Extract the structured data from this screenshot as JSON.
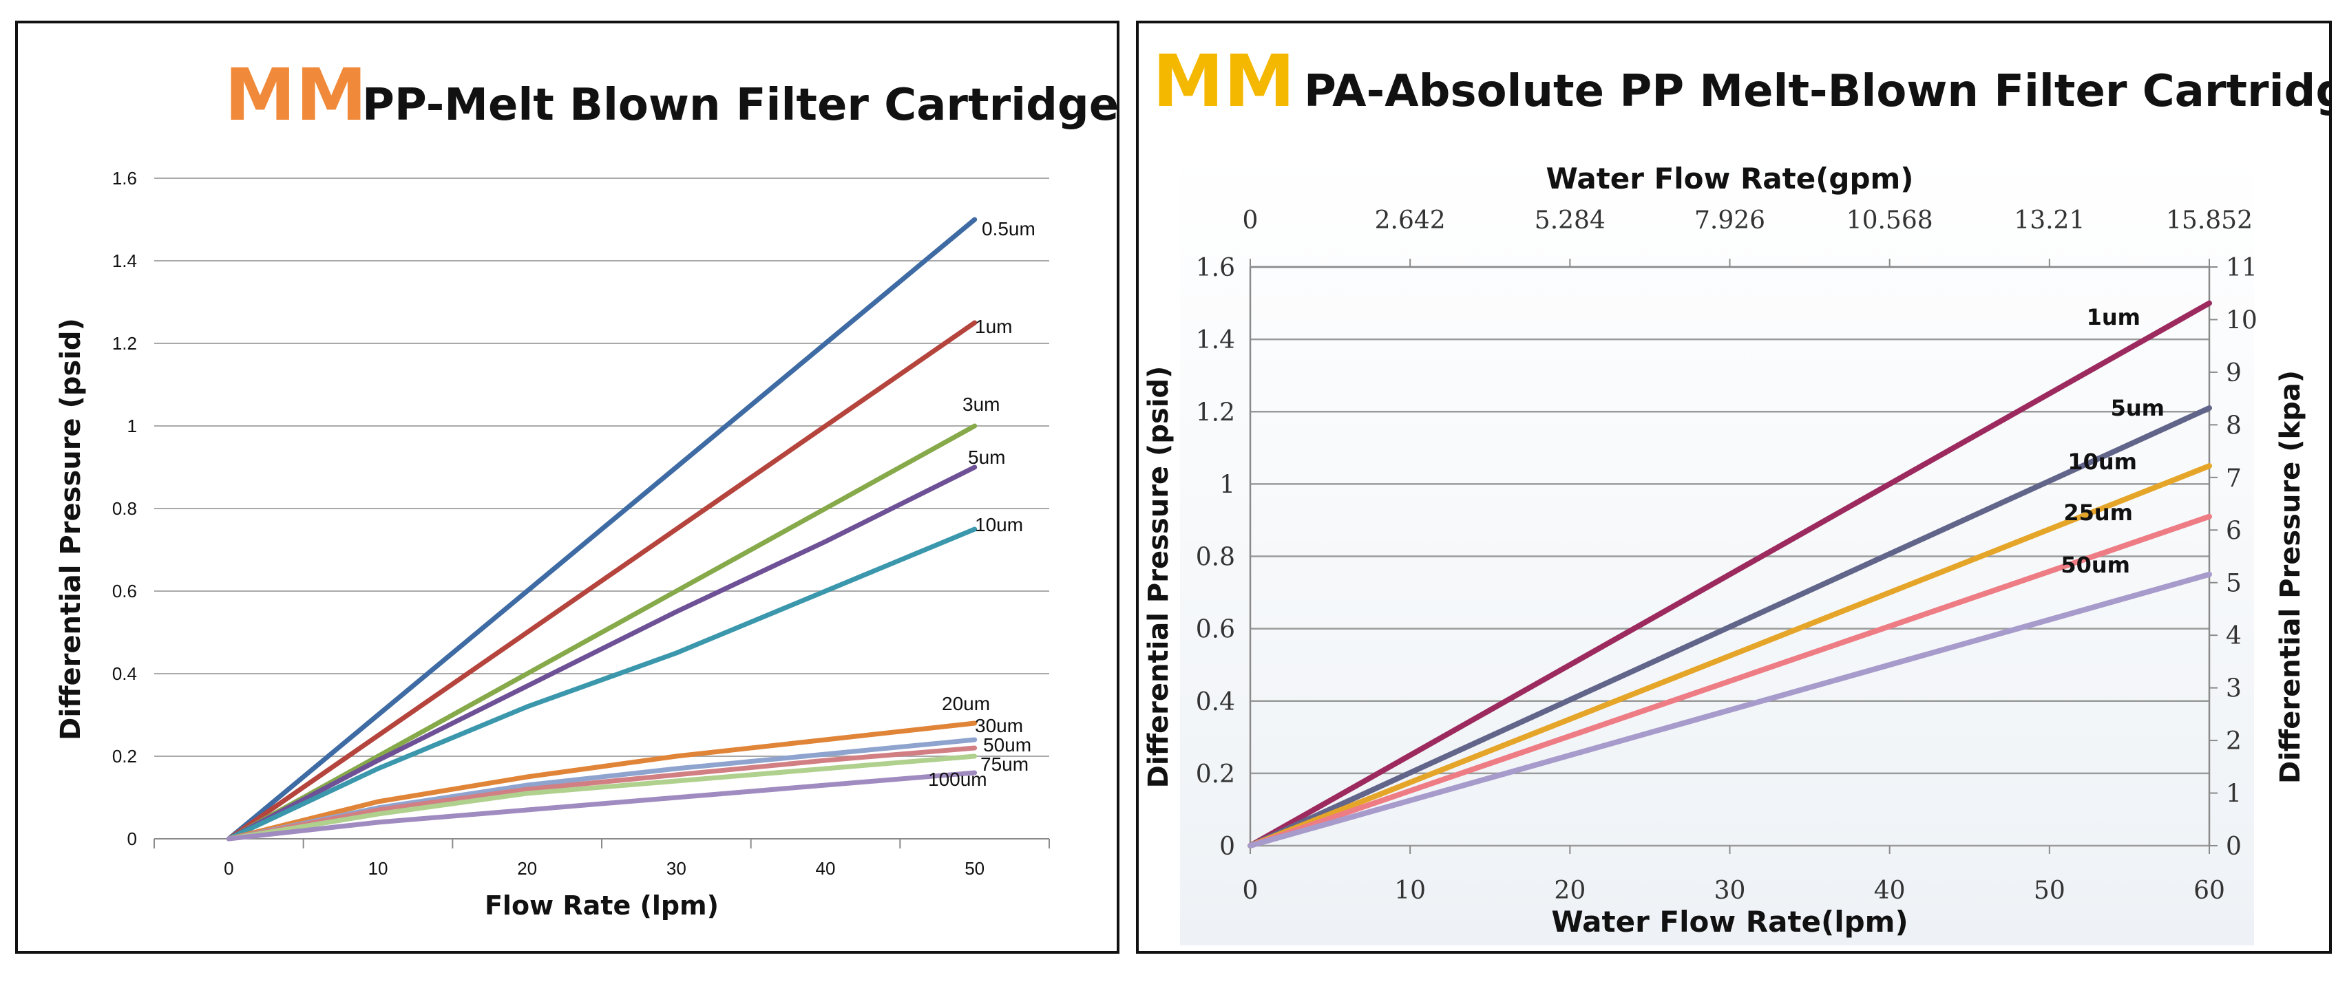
{
  "left": {
    "brand": "MM",
    "brand_color": "#F08A3A",
    "title": "PP-Melt Blown Filter Cartridges"
  },
  "right": {
    "brand": "MM",
    "brand_color": "#F5B800",
    "title": "PA-Absolute PP Melt-Blown Filter Cartridges"
  },
  "chart_data": [
    {
      "type": "line",
      "title": "PP-Melt Blown Filter Cartridges",
      "xlabel": "Flow Rate (lpm)",
      "ylabel": "Differential Pressure (psid)",
      "xlim": [
        -5,
        55
      ],
      "ylim": [
        0,
        1.6
      ],
      "x_ticks": [
        0,
        10,
        20,
        30,
        40,
        50
      ],
      "y_ticks": [
        0,
        0.2,
        0.4,
        0.6,
        0.8,
        1,
        1.2,
        1.4,
        1.6
      ],
      "grid": true,
      "x": [
        0,
        10,
        20,
        30,
        40,
        50
      ],
      "series": [
        {
          "name": "0.5um",
          "color": "#3E6BA3",
          "values": [
            0,
            0.3,
            0.6,
            0.9,
            1.2,
            1.5
          ]
        },
        {
          "name": "1um",
          "color": "#B5443D",
          "values": [
            0,
            0.25,
            0.5,
            0.75,
            1.0,
            1.25
          ]
        },
        {
          "name": "3um",
          "color": "#86A94A",
          "values": [
            0,
            0.2,
            0.4,
            0.6,
            0.8,
            1.0
          ]
        },
        {
          "name": "5um",
          "color": "#6E5096",
          "values": [
            0,
            0.19,
            0.37,
            0.55,
            0.72,
            0.9
          ]
        },
        {
          "name": "10um",
          "color": "#3A97AC",
          "values": [
            0,
            0.17,
            0.32,
            0.45,
            0.6,
            0.75
          ]
        },
        {
          "name": "20um",
          "color": "#E08438",
          "values": [
            0,
            0.09,
            0.15,
            0.2,
            0.24,
            0.28
          ]
        },
        {
          "name": "30um",
          "color": "#8EA4CE",
          "values": [
            0,
            0.075,
            0.13,
            0.17,
            0.205,
            0.24
          ]
        },
        {
          "name": "50um",
          "color": "#D27F84",
          "values": [
            0,
            0.07,
            0.12,
            0.155,
            0.19,
            0.22
          ]
        },
        {
          "name": "75um",
          "color": "#B0D08E",
          "values": [
            0,
            0.06,
            0.11,
            0.14,
            0.17,
            0.2
          ]
        },
        {
          "name": "100um",
          "color": "#A08BC0",
          "values": [
            0,
            0.04,
            0.07,
            0.1,
            0.13,
            0.16
          ]
        }
      ]
    },
    {
      "type": "line",
      "title": "PA-Absolute PP Melt-Blown Filter Cartridges",
      "xlabel": "Water Flow Rate(lpm)",
      "x2label": "Water Flow Rate(gpm)",
      "ylabel": "Differential Pressure (psid)",
      "y2label": "Differential Pressure (kpa)",
      "xlim": [
        0,
        60
      ],
      "ylim": [
        0,
        1.6
      ],
      "x_ticks": [
        0,
        10,
        20,
        30,
        40,
        50,
        60
      ],
      "x2_ticks": [
        "0",
        "2.642",
        "5.284",
        "7.926",
        "10.568",
        "13.21",
        "15.852"
      ],
      "y_ticks": [
        "0",
        "0.2",
        "0.4",
        "0.6",
        "0.8",
        "1",
        "1.2",
        "1.4",
        "1.6"
      ],
      "y2_ticks": [
        "0",
        "1",
        "2",
        "3",
        "4",
        "5",
        "6",
        "7",
        "8",
        "9",
        "10",
        "11"
      ],
      "grid": true,
      "x": [
        0,
        60
      ],
      "series": [
        {
          "name": "1um",
          "color": "#9C2A5E",
          "values": [
            0,
            1.5
          ]
        },
        {
          "name": "5um",
          "color": "#62658A",
          "values": [
            0,
            1.21
          ]
        },
        {
          "name": "10um",
          "color": "#E5A528",
          "values": [
            0,
            1.05
          ]
        },
        {
          "name": "25um",
          "color": "#EE7C84",
          "values": [
            0,
            0.91
          ]
        },
        {
          "name": "50um",
          "color": "#A79BCB",
          "values": [
            0,
            0.75
          ]
        }
      ]
    }
  ]
}
